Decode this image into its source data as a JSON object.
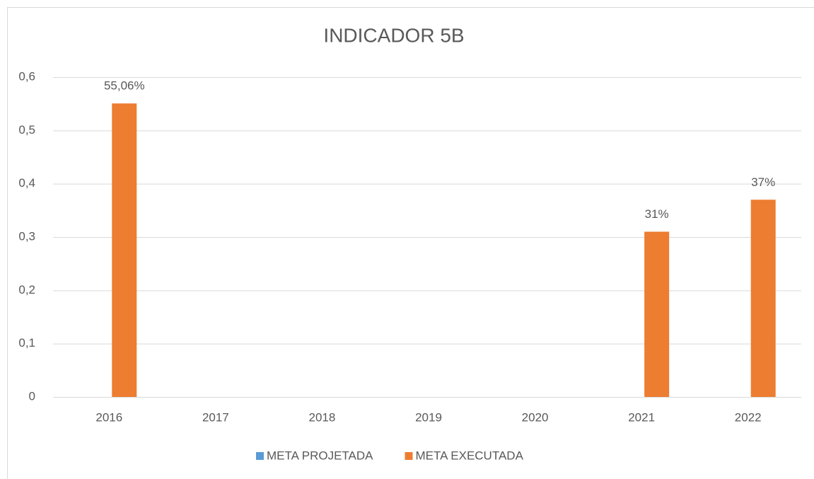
{
  "chart_data": {
    "type": "bar",
    "title": "INDICADOR 5B",
    "categories": [
      "2016",
      "2017",
      "2018",
      "2019",
      "2020",
      "2021",
      "2022"
    ],
    "series": [
      {
        "name": "META PROJETADA",
        "color": "#5b9bd5",
        "values": [
          null,
          null,
          null,
          null,
          null,
          null,
          null
        ]
      },
      {
        "name": "META EXECUTADA",
        "color": "#ed7d31",
        "values": [
          0.5506,
          null,
          null,
          null,
          null,
          0.31,
          0.37
        ],
        "value_labels": [
          "55,06%",
          null,
          null,
          null,
          null,
          "31%",
          "37%"
        ]
      }
    ],
    "ylim": [
      0,
      0.6
    ],
    "yticks": [
      0,
      {
        "value": 0.1,
        "label": "0,1"
      },
      {
        "value": 0.2,
        "label": "0,2"
      },
      {
        "value": 0.3,
        "label": "0,3"
      },
      {
        "value": 0.4,
        "label": "0,4"
      },
      {
        "value": 0.5,
        "label": "0,5"
      },
      {
        "value": 0.6,
        "label": "0,6"
      }
    ],
    "grid": true,
    "legend": "bottom"
  }
}
